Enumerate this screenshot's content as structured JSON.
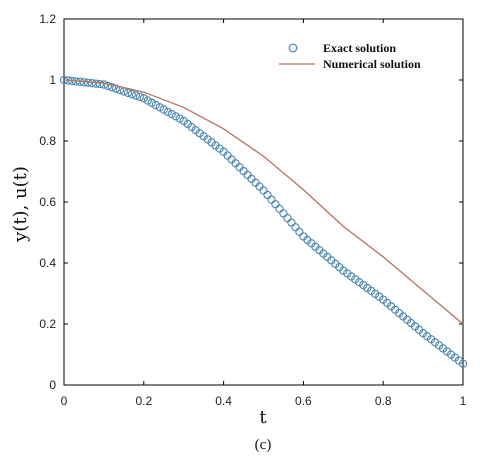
{
  "chart_data": {
    "type": "line",
    "xlabel": "t",
    "ylabel": "y(t), u(t)",
    "caption": "(c)",
    "xlim": [
      0,
      1
    ],
    "ylim": [
      0,
      1.2
    ],
    "x_ticks": [
      "0",
      "0.2",
      "0.4",
      "0.6",
      "0.8",
      "1"
    ],
    "y_ticks": [
      "0",
      "0.2",
      "0.4",
      "0.6",
      "0.8",
      "1",
      "1.2"
    ],
    "legend_position": "top-right",
    "grid": false,
    "series": [
      {
        "name": "Exact solution",
        "style": "markers",
        "color": "#4a86ad",
        "x": [
          0,
          0.1,
          0.2,
          0.3,
          0.4,
          0.5,
          0.6,
          0.7,
          0.8,
          0.9,
          1.0
        ],
        "y": [
          1.0,
          0.985,
          0.94,
          0.866,
          0.765,
          0.638,
          0.487,
          0.375,
          0.28,
          0.17,
          0.07
        ]
      },
      {
        "name": "Numerical solution",
        "style": "line",
        "color": "#b5735e",
        "x": [
          0,
          0.1,
          0.2,
          0.3,
          0.4,
          0.5,
          0.6,
          0.7,
          0.8,
          0.9,
          1.0
        ],
        "y": [
          1.0,
          0.99,
          0.96,
          0.91,
          0.84,
          0.75,
          0.64,
          0.52,
          0.42,
          0.31,
          0.2
        ]
      }
    ]
  }
}
